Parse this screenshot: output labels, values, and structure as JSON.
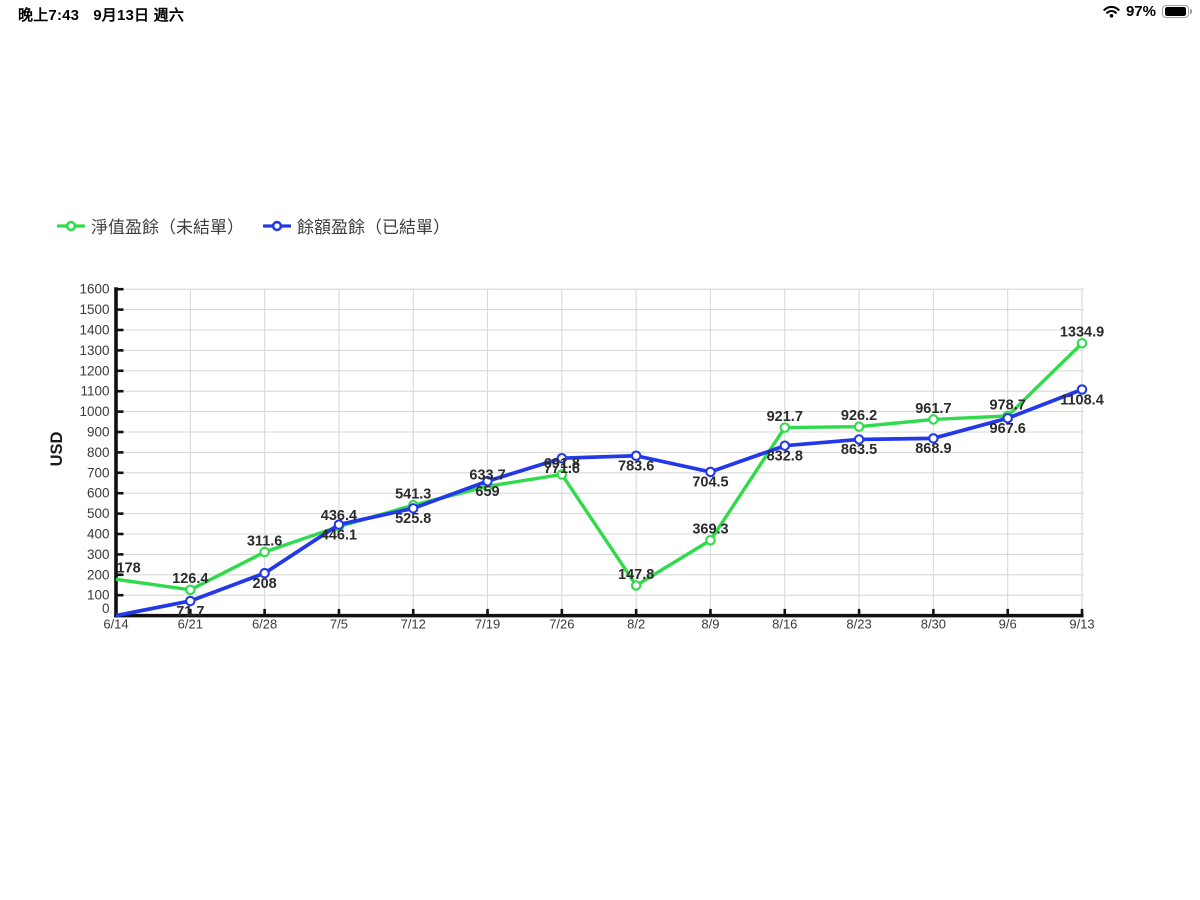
{
  "status_bar": {
    "time": "晚上7:43",
    "date": "9月13日 週六",
    "battery_percent": "97%",
    "battery_level": 0.97,
    "icons": [
      "wifi-icon",
      "battery-icon"
    ]
  },
  "colors": {
    "series_green": "#30DB4B",
    "series_blue": "#2338E8",
    "grid": "#D9D9D9",
    "axis": "#111111",
    "tick_label": "#3A3A3A",
    "data_label": "#2B2B2B",
    "legend_text": "#3D3D3D",
    "marker_fill": "#FFFFFF",
    "background": "#FFFFFF"
  },
  "chart_data": {
    "type": "line",
    "title": "",
    "xlabel": "",
    "ylabel": "USD",
    "ylim": [
      0,
      1600
    ],
    "ytick_step": 100,
    "grid": true,
    "legend_position": "top-left",
    "categories": [
      "6/14",
      "6/21",
      "6/28",
      "7/5",
      "7/12",
      "7/19",
      "7/26",
      "8/2",
      "8/9",
      "8/16",
      "8/23",
      "8/30",
      "9/6",
      "9/13"
    ],
    "series": [
      {
        "name": "淨值盈餘（未結單）",
        "color": "#30DB4B",
        "label_position": "above",
        "values": [
          178,
          126.4,
          311.6,
          436.4,
          541.3,
          633.7,
          691.8,
          147.8,
          369.3,
          921.7,
          926.2,
          961.7,
          978.7,
          1334.9
        ],
        "labels": [
          "178",
          "126.4",
          "311.6",
          "436.4",
          "541.3",
          "633.7",
          "691.8",
          "147.8",
          "369.3",
          "921.7",
          "926.2",
          "961.7",
          "978.7",
          "1334.9"
        ]
      },
      {
        "name": "餘額盈餘（已結單）",
        "color": "#2338E8",
        "label_position": "below",
        "values": [
          0,
          71.7,
          208,
          446.1,
          525.8,
          659,
          771.6,
          783.6,
          704.5,
          832.8,
          863.5,
          868.9,
          967.6,
          1108.4
        ],
        "labels": [
          "",
          "71.7",
          "208",
          "446.1",
          "525.8",
          "659",
          "771.6",
          "783.6",
          "704.5",
          "832.8",
          "863.5",
          "868.9",
          "967.6",
          "1108.4"
        ]
      }
    ]
  }
}
